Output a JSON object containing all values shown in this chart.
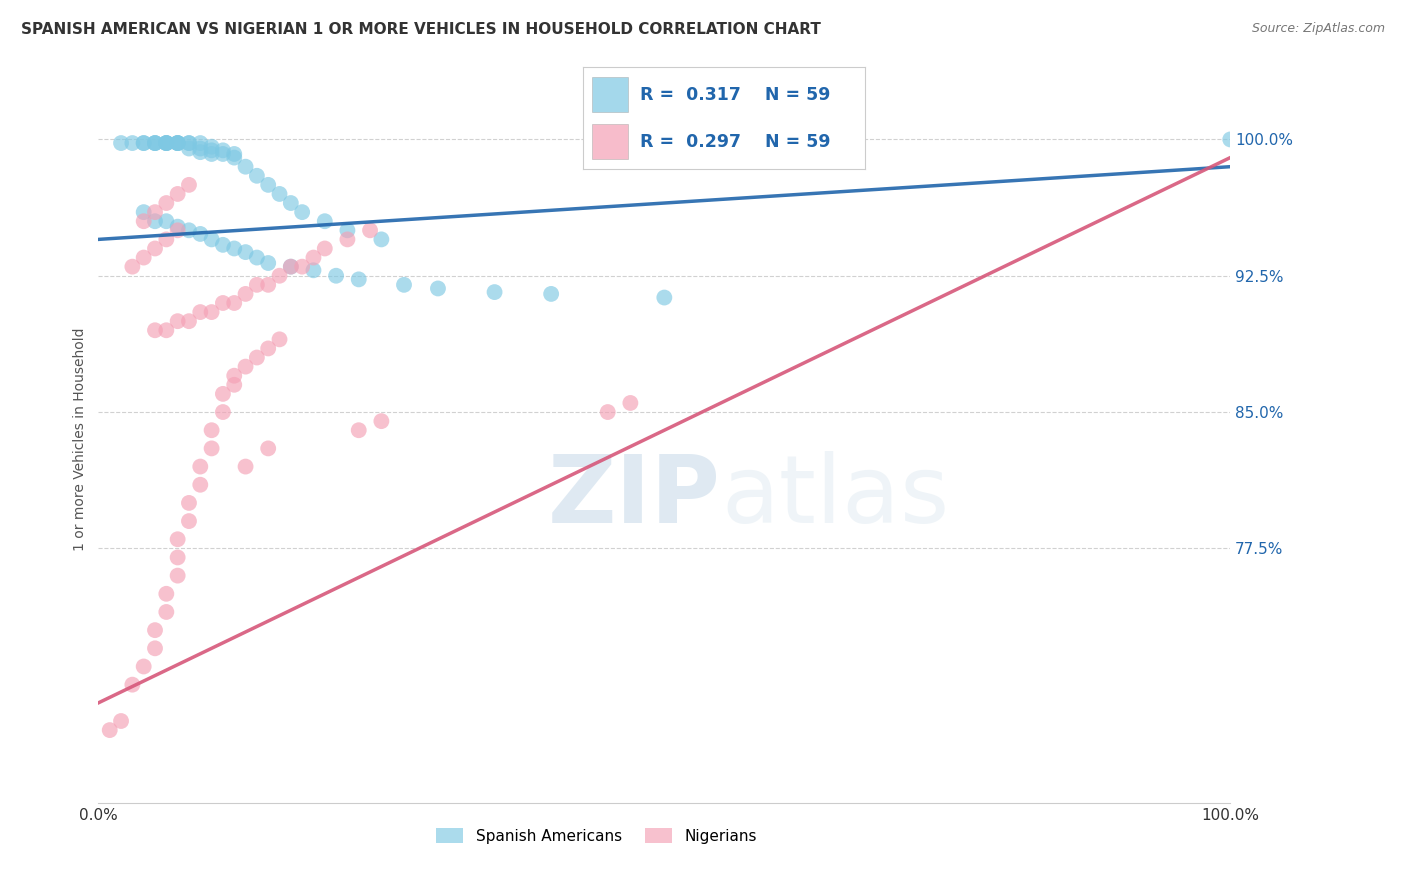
{
  "title": "SPANISH AMERICAN VS NIGERIAN 1 OR MORE VEHICLES IN HOUSEHOLD CORRELATION CHART",
  "source": "Source: ZipAtlas.com",
  "ylabel": "1 or more Vehicles in Household",
  "yticks": [
    0.775,
    0.85,
    0.925,
    1.0
  ],
  "ytick_labels": [
    "77.5%",
    "85.0%",
    "92.5%",
    "100.0%"
  ],
  "xmin": 0.0,
  "xmax": 1.0,
  "ymin": 0.635,
  "ymax": 1.035,
  "blue_R": 0.317,
  "pink_R": 0.297,
  "N": 59,
  "blue_color": "#7ec8e3",
  "pink_color": "#f4a0b5",
  "blue_line_color": "#2166ac",
  "pink_line_color": "#d6587a",
  "legend_blue_label": "Spanish Americans",
  "legend_pink_label": "Nigerians",
  "blue_scatter_x": [
    0.02,
    0.03,
    0.04,
    0.04,
    0.05,
    0.05,
    0.05,
    0.06,
    0.06,
    0.06,
    0.06,
    0.07,
    0.07,
    0.07,
    0.07,
    0.08,
    0.08,
    0.08,
    0.09,
    0.09,
    0.09,
    0.1,
    0.1,
    0.1,
    0.11,
    0.11,
    0.12,
    0.12,
    0.13,
    0.14,
    0.15,
    0.16,
    0.17,
    0.18,
    0.2,
    0.22,
    0.25,
    0.04,
    0.05,
    0.06,
    0.07,
    0.08,
    0.09,
    0.1,
    0.11,
    0.12,
    0.13,
    0.14,
    0.15,
    0.17,
    0.19,
    0.21,
    0.23,
    0.27,
    0.3,
    0.35,
    0.4,
    0.5,
    1.0
  ],
  "blue_scatter_y": [
    0.998,
    0.998,
    0.998,
    0.998,
    0.998,
    0.998,
    0.998,
    0.998,
    0.998,
    0.998,
    0.998,
    0.998,
    0.998,
    0.998,
    0.998,
    0.998,
    0.998,
    0.995,
    0.998,
    0.995,
    0.993,
    0.996,
    0.994,
    0.992,
    0.994,
    0.992,
    0.992,
    0.99,
    0.985,
    0.98,
    0.975,
    0.97,
    0.965,
    0.96,
    0.955,
    0.95,
    0.945,
    0.96,
    0.955,
    0.955,
    0.952,
    0.95,
    0.948,
    0.945,
    0.942,
    0.94,
    0.938,
    0.935,
    0.932,
    0.93,
    0.928,
    0.925,
    0.923,
    0.92,
    0.918,
    0.916,
    0.915,
    0.913,
    1.0
  ],
  "pink_scatter_x": [
    0.01,
    0.02,
    0.03,
    0.04,
    0.05,
    0.05,
    0.06,
    0.06,
    0.07,
    0.07,
    0.07,
    0.08,
    0.08,
    0.09,
    0.09,
    0.1,
    0.1,
    0.11,
    0.11,
    0.12,
    0.12,
    0.13,
    0.14,
    0.15,
    0.16,
    0.05,
    0.06,
    0.07,
    0.08,
    0.09,
    0.1,
    0.11,
    0.12,
    0.13,
    0.14,
    0.15,
    0.16,
    0.17,
    0.18,
    0.19,
    0.2,
    0.22,
    0.24,
    0.04,
    0.05,
    0.06,
    0.07,
    0.08,
    0.23,
    0.25,
    0.13,
    0.15,
    0.45,
    0.47,
    0.03,
    0.04,
    0.05,
    0.06,
    0.07
  ],
  "pink_scatter_y": [
    0.675,
    0.68,
    0.7,
    0.71,
    0.72,
    0.73,
    0.74,
    0.75,
    0.76,
    0.77,
    0.78,
    0.79,
    0.8,
    0.81,
    0.82,
    0.83,
    0.84,
    0.85,
    0.86,
    0.865,
    0.87,
    0.875,
    0.88,
    0.885,
    0.89,
    0.895,
    0.895,
    0.9,
    0.9,
    0.905,
    0.905,
    0.91,
    0.91,
    0.915,
    0.92,
    0.92,
    0.925,
    0.93,
    0.93,
    0.935,
    0.94,
    0.945,
    0.95,
    0.955,
    0.96,
    0.965,
    0.97,
    0.975,
    0.84,
    0.845,
    0.82,
    0.83,
    0.85,
    0.855,
    0.93,
    0.935,
    0.94,
    0.945,
    0.95
  ]
}
